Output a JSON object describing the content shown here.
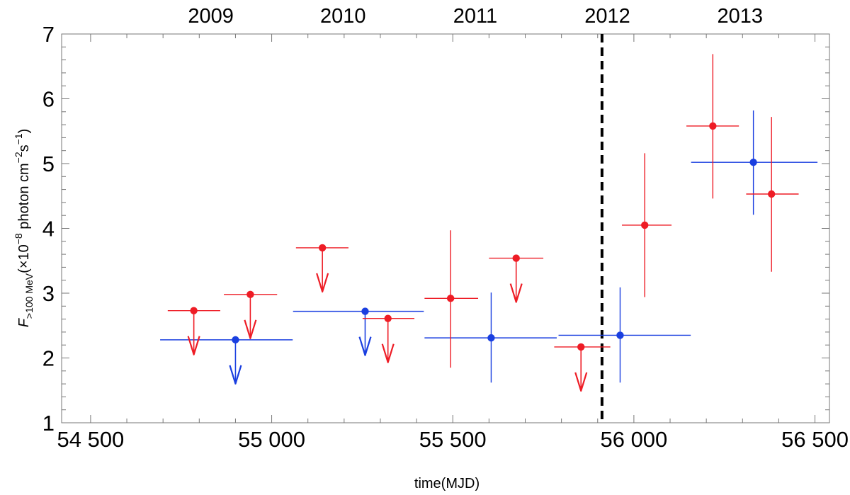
{
  "chart_data": {
    "type": "scatter",
    "title": "",
    "xlabel": "time(MJD)",
    "ylabel": {
      "italic": "F",
      "subscript": ">100 MeV",
      "rest_a": "(×10",
      "exp_a": "−8",
      "rest_b": " photon cm",
      "exp_b": "−2",
      "rest_c": "s",
      "exp_c": "−1",
      "rest_d": ")"
    },
    "xlim": [
      54420,
      56540
    ],
    "ylim": [
      1,
      7
    ],
    "x_ticks": [
      54500,
      55000,
      55500,
      56000,
      56500
    ],
    "x_tick_labels": [
      "54 500",
      "55 000",
      "55 500",
      "56 000",
      "56 500"
    ],
    "y_ticks": [
      1,
      2,
      3,
      4,
      5,
      6,
      7
    ],
    "y_tick_labels": [
      "1",
      "2",
      "3",
      "4",
      "5",
      "6",
      "7"
    ],
    "year_labels": [
      {
        "label": "2009",
        "x": 54832
      },
      {
        "label": "2010",
        "x": 55197
      },
      {
        "label": "2011",
        "x": 55562
      },
      {
        "label": "2012",
        "x": 55927
      },
      {
        "label": "2013",
        "x": 56293
      }
    ],
    "vline": {
      "x": 55912,
      "style": "dashed",
      "color": "#000000"
    },
    "colors": {
      "red": "#ee1c25",
      "blue": "#1a3fe0"
    },
    "red_measurements": [
      {
        "x": 55494,
        "y": 2.92,
        "xerr_low": 55422,
        "xerr_high": 55570,
        "yerr_low": 1.85,
        "yerr_high": 3.97
      },
      {
        "x": 56030,
        "y": 4.05,
        "xerr_low": 55967,
        "xerr_high": 56104,
        "yerr_low": 2.94,
        "yerr_high": 5.16
      },
      {
        "x": 56218,
        "y": 5.58,
        "xerr_low": 56145,
        "xerr_high": 56290,
        "yerr_low": 4.46,
        "yerr_high": 6.69
      },
      {
        "x": 56380,
        "y": 4.53,
        "xerr_low": 56310,
        "xerr_high": 56455,
        "yerr_low": 3.33,
        "yerr_high": 5.72
      }
    ],
    "red_upper_limits": [
      {
        "x": 54785,
        "y": 2.73,
        "xerr_low": 54713,
        "xerr_high": 54858
      },
      {
        "x": 54941,
        "y": 2.98,
        "xerr_low": 54868,
        "xerr_high": 55015
      },
      {
        "x": 55140,
        "y": 3.7,
        "xerr_low": 55067,
        "xerr_high": 55212
      },
      {
        "x": 55321,
        "y": 2.61,
        "xerr_low": 55251,
        "xerr_high": 55394
      },
      {
        "x": 55675,
        "y": 3.54,
        "xerr_low": 55600,
        "xerr_high": 55750
      },
      {
        "x": 55854,
        "y": 2.17,
        "xerr_low": 55780,
        "xerr_high": 55935
      }
    ],
    "blue_measurements": [
      {
        "x": 55606,
        "y": 2.31,
        "xerr_low": 55422,
        "xerr_high": 55787,
        "yerr_low": 1.62,
        "yerr_high": 3.01
      },
      {
        "x": 55962,
        "y": 2.35,
        "xerr_low": 55792,
        "xerr_high": 56157,
        "yerr_low": 1.62,
        "yerr_high": 3.09
      },
      {
        "x": 56330,
        "y": 5.02,
        "xerr_low": 56158,
        "xerr_high": 56507,
        "yerr_low": 4.21,
        "yerr_high": 5.82
      }
    ],
    "blue_upper_limits": [
      {
        "x": 54900,
        "y": 2.28,
        "xerr_low": 54692,
        "xerr_high": 55058
      },
      {
        "x": 55258,
        "y": 2.72,
        "xerr_low": 55059,
        "xerr_high": 55420
      }
    ]
  }
}
